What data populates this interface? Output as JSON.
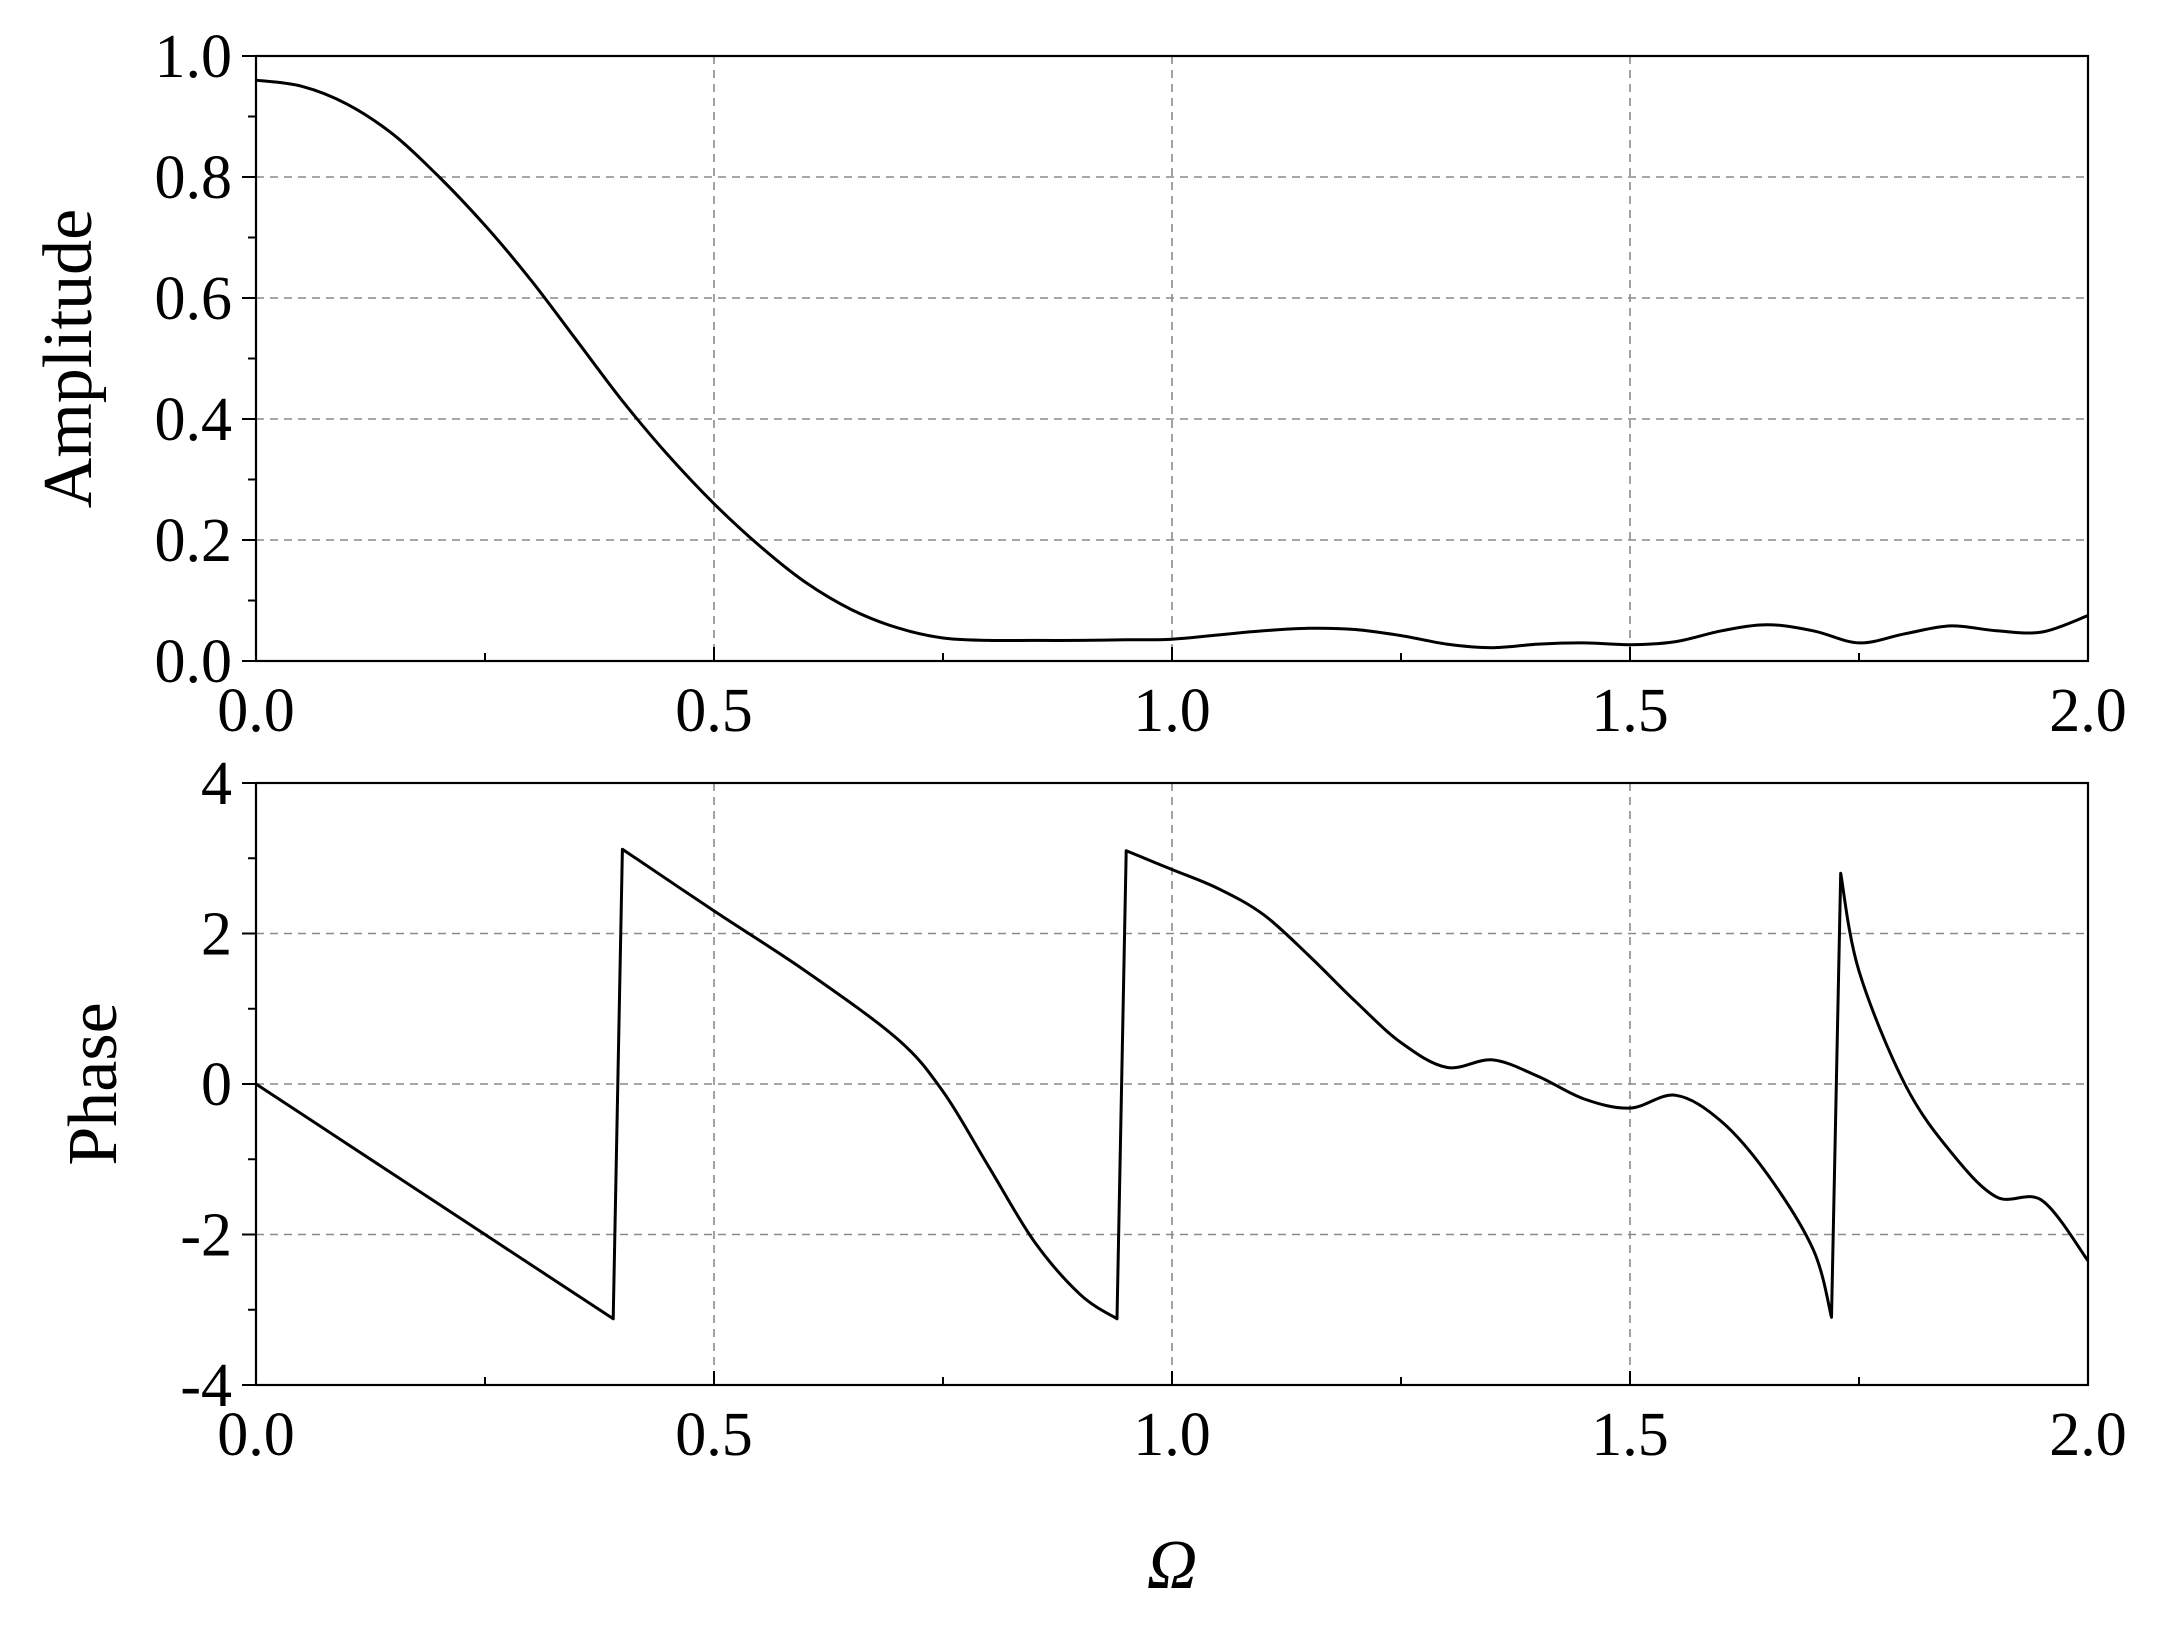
{
  "chart_data": [
    {
      "type": "line",
      "id": "amplitude",
      "ylabel": "Amplitude",
      "xlabel": "",
      "xlim": [
        0,
        2
      ],
      "ylim": [
        0,
        1
      ],
      "xticks": [
        0,
        0.5,
        1,
        1.5,
        2
      ],
      "xtick_labels": [
        "0.0",
        "0.5",
        "1.0",
        "1.5",
        "2.0"
      ],
      "yticks": [
        0,
        0.2,
        0.4,
        0.6,
        0.8,
        1
      ],
      "ytick_labels": [
        "0.0",
        "0.2",
        "0.4",
        "0.6",
        "0.8",
        "1.0"
      ],
      "grid": true,
      "series": [
        {
          "color": "#000000",
          "x": [
            0,
            0.05,
            0.1,
            0.15,
            0.2,
            0.25,
            0.3,
            0.35,
            0.4,
            0.45,
            0.5,
            0.55,
            0.6,
            0.65,
            0.7,
            0.75,
            0.8,
            0.85,
            0.9,
            0.95,
            1.0,
            1.05,
            1.1,
            1.15,
            1.2,
            1.25,
            1.3,
            1.35,
            1.4,
            1.45,
            1.5,
            1.55,
            1.6,
            1.65,
            1.7,
            1.75,
            1.8,
            1.85,
            1.9,
            1.95,
            2.0
          ],
          "y": [
            0.96,
            0.95,
            0.92,
            0.87,
            0.8,
            0.72,
            0.63,
            0.53,
            0.43,
            0.34,
            0.26,
            0.19,
            0.13,
            0.085,
            0.055,
            0.038,
            0.034,
            0.034,
            0.034,
            0.035,
            0.036,
            0.043,
            0.05,
            0.054,
            0.052,
            0.042,
            0.028,
            0.022,
            0.028,
            0.03,
            0.027,
            0.032,
            0.05,
            0.06,
            0.05,
            0.03,
            0.045,
            0.058,
            0.05,
            0.048,
            0.075
          ]
        }
      ]
    },
    {
      "type": "line",
      "id": "phase",
      "ylabel": "Phase",
      "xlabel": "Ω",
      "xlim": [
        0,
        2
      ],
      "ylim": [
        -4,
        4
      ],
      "xticks": [
        0,
        0.5,
        1,
        1.5,
        2
      ],
      "xtick_labels": [
        "0.0",
        "0.5",
        "1.0",
        "1.5",
        "2.0"
      ],
      "yticks": [
        -4,
        -2,
        0,
        2,
        4
      ],
      "ytick_labels": [
        "-4",
        "-2",
        "0",
        "2",
        "4"
      ],
      "grid": true,
      "series": [
        {
          "color": "#000000",
          "x": [
            0,
            0.1,
            0.2,
            0.3,
            0.39,
            0.4,
            0.5,
            0.6,
            0.7,
            0.75,
            0.8,
            0.85,
            0.9,
            0.94,
            0.95,
            1.0,
            1.05,
            1.1,
            1.15,
            1.2,
            1.25,
            1.3,
            1.35,
            1.4,
            1.45,
            1.5,
            1.55,
            1.6,
            1.65,
            1.7,
            1.72,
            1.73,
            1.75,
            1.8,
            1.85,
            1.9,
            1.95,
            2.0
          ],
          "y": [
            0,
            -0.8,
            -1.6,
            -2.4,
            -3.12,
            3.12,
            2.3,
            1.5,
            0.6,
            -0.1,
            -1.1,
            -2.1,
            -2.8,
            -3.12,
            3.1,
            2.85,
            2.6,
            2.25,
            1.7,
            1.1,
            0.55,
            0.22,
            0.32,
            0.1,
            -0.2,
            -0.32,
            -0.15,
            -0.5,
            -1.2,
            -2.2,
            -3.1,
            2.8,
            1.5,
            0.0,
            -0.9,
            -1.5,
            -1.55,
            -2.35
          ]
        }
      ]
    }
  ]
}
